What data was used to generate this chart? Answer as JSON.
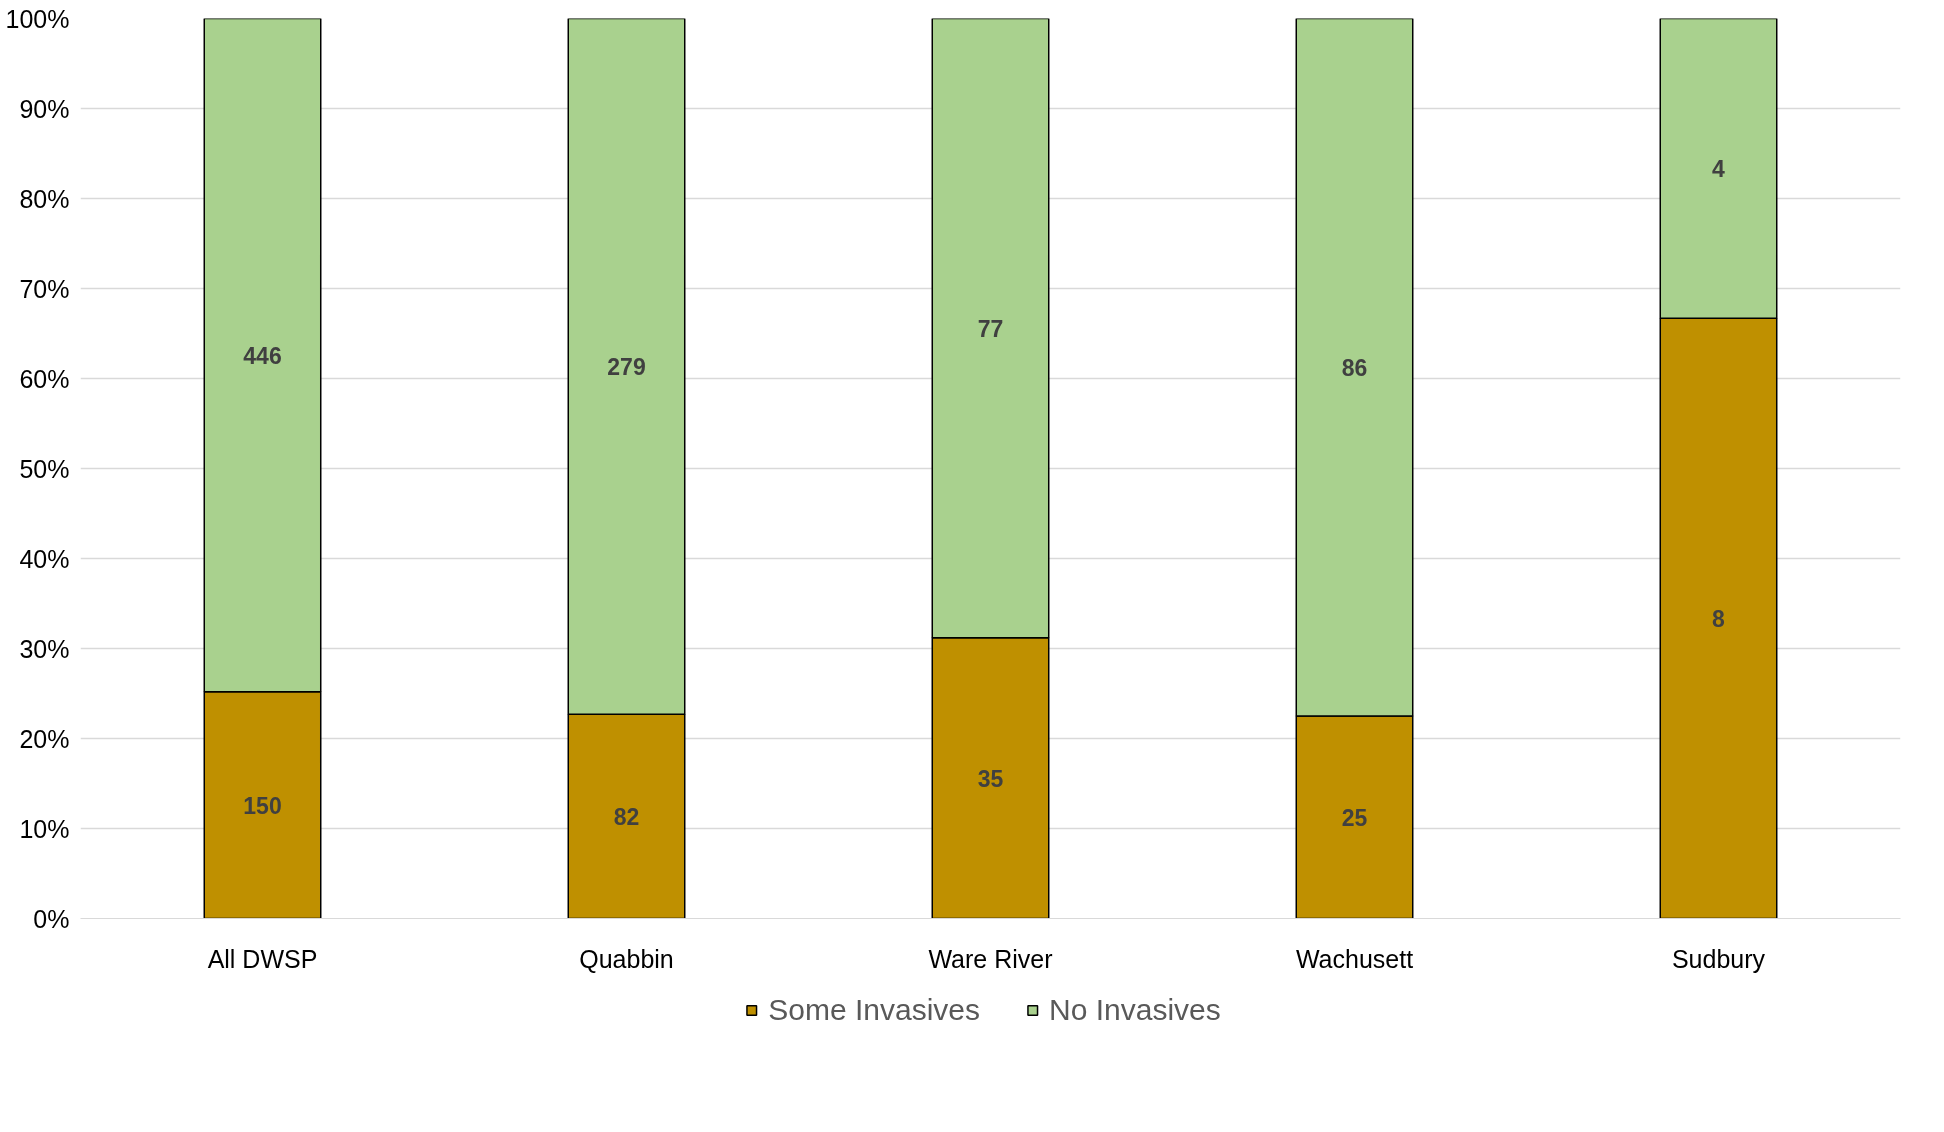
{
  "chart_data": {
    "type": "bar",
    "stacked": true,
    "categories": [
      "All DWSP",
      "Quabbin",
      "Ware River",
      "Wachusett",
      "Sudbury"
    ],
    "series": [
      {
        "name": "Some Invasives",
        "color": "#bf9000",
        "values": [
          25.2,
          22.7,
          31.2,
          22.5,
          66.7
        ]
      },
      {
        "name": "No Invasives",
        "color": "#a9d18e",
        "values": [
          74.8,
          77.3,
          68.8,
          77.5,
          33.3
        ]
      }
    ],
    "annotations": [
      "150",
      "82",
      "35",
      "25",
      "8",
      "446",
      "279",
      "77",
      "86",
      "4"
    ],
    "ylim": [
      0,
      100
    ],
    "yticks": [
      {
        "value": 0,
        "label": "0%"
      },
      {
        "value": 10,
        "label": "10%"
      },
      {
        "value": 20,
        "label": "20%"
      },
      {
        "value": 30,
        "label": "30%"
      },
      {
        "value": 40,
        "label": "40%"
      },
      {
        "value": 50,
        "label": "50%"
      },
      {
        "value": 60,
        "label": "60%"
      },
      {
        "value": 70,
        "label": "70%"
      },
      {
        "value": 80,
        "label": "80%"
      },
      {
        "value": 90,
        "label": "90%"
      },
      {
        "value": 100,
        "label": "100%"
      }
    ],
    "grid": "y",
    "legend": "bottom"
  }
}
